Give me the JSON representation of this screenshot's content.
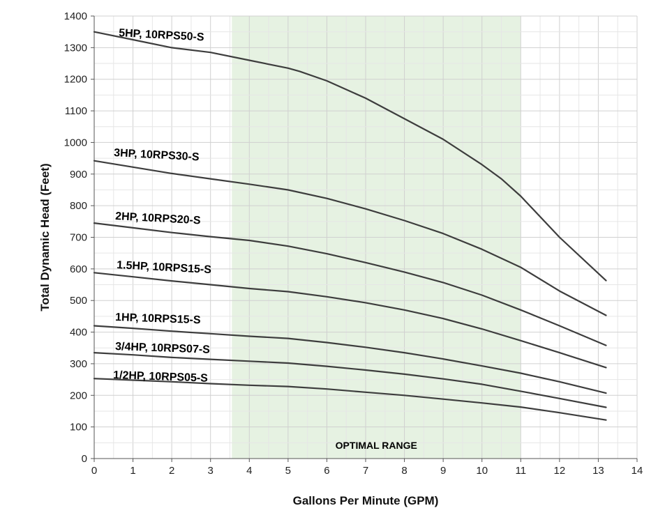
{
  "chart_data": {
    "type": "line",
    "title": "",
    "xlabel": "Gallons Per Minute (GPM)",
    "ylabel": "Total Dynamic Head (Feet)",
    "xlim": [
      0,
      14
    ],
    "ylim": [
      0,
      1400
    ],
    "x_ticks": [
      0,
      1,
      2,
      3,
      4,
      5,
      6,
      7,
      8,
      9,
      10,
      11,
      12,
      13,
      14
    ],
    "y_ticks": [
      0,
      100,
      200,
      300,
      400,
      500,
      600,
      700,
      800,
      900,
      1000,
      1100,
      1200,
      1300,
      1400
    ],
    "grid": true,
    "legend": "none",
    "line_color": "#3d3d3d",
    "region_color": "#e6f2e2",
    "shaded_region": {
      "x_start": 3.55,
      "x_end": 11,
      "label": "OPTIMAL RANGE"
    },
    "series": [
      {
        "name": "5HP,  10RPS50-S",
        "x": [
          0,
          1,
          2,
          3,
          4,
          5,
          5.3,
          6,
          7,
          8,
          9,
          10,
          10.5,
          11,
          12,
          13.2
        ],
        "y": [
          1350,
          1325,
          1300,
          1285,
          1260,
          1235,
          1225,
          1195,
          1140,
          1075,
          1010,
          930,
          885,
          830,
          700,
          563
        ]
      },
      {
        "name": "3HP,  10RPS30-S",
        "x": [
          0,
          1,
          2,
          3,
          4,
          5,
          6,
          7,
          8,
          9,
          10,
          11,
          12,
          13.2
        ],
        "y": [
          942,
          922,
          902,
          885,
          868,
          850,
          823,
          790,
          753,
          712,
          662,
          605,
          530,
          453
        ]
      },
      {
        "name": "2HP, 10RPS20-S",
        "x": [
          0,
          1,
          2,
          3,
          4,
          5,
          6,
          7,
          8,
          9,
          10,
          11,
          12,
          13.2
        ],
        "y": [
          745,
          730,
          715,
          702,
          690,
          672,
          648,
          620,
          590,
          557,
          517,
          470,
          420,
          358
        ]
      },
      {
        "name": "1.5HP, 10RPS15-S",
        "x": [
          0,
          1,
          2,
          3,
          4,
          5,
          6,
          7,
          8,
          9,
          10,
          11,
          12,
          13.2
        ],
        "y": [
          588,
          575,
          562,
          550,
          538,
          528,
          512,
          493,
          470,
          443,
          410,
          373,
          335,
          288
        ]
      },
      {
        "name": "1HP, 10RPS15-S",
        "x": [
          0,
          1,
          2,
          3,
          4,
          5,
          6,
          7,
          8,
          9,
          10,
          11,
          12,
          13.2
        ],
        "y": [
          420,
          412,
          403,
          395,
          387,
          380,
          367,
          352,
          335,
          315,
          293,
          270,
          243,
          207
        ]
      },
      {
        "name": "3/4HP, 10RPS07-S",
        "x": [
          0,
          1,
          2,
          3,
          4,
          5,
          6,
          7,
          8,
          9,
          10,
          11,
          12,
          13.2
        ],
        "y": [
          335,
          328,
          320,
          314,
          308,
          302,
          292,
          280,
          267,
          252,
          235,
          213,
          190,
          162
        ]
      },
      {
        "name": "1/2HP, 10RPS05-S",
        "x": [
          0,
          1,
          2,
          3,
          4,
          5,
          6,
          7,
          8,
          9,
          10,
          11,
          12,
          13.2
        ],
        "y": [
          253,
          248,
          243,
          237,
          232,
          228,
          220,
          210,
          200,
          188,
          176,
          163,
          145,
          122
        ]
      }
    ]
  }
}
